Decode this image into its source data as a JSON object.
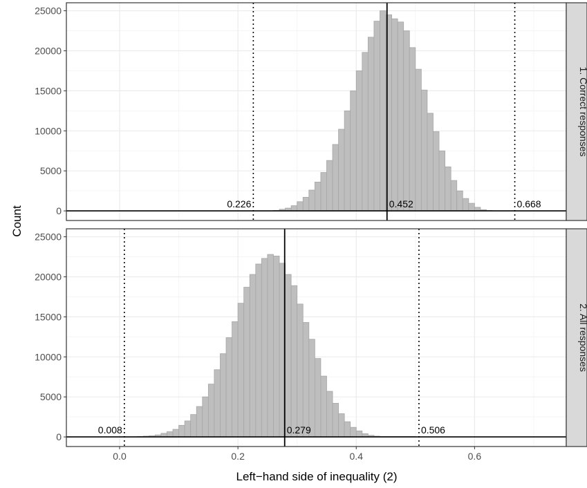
{
  "chart_data": {
    "type": "bar",
    "xlabel": "Left−hand side of inequality (2)",
    "ylabel": "Count",
    "xlim": [
      -0.09,
      0.755
    ],
    "x_ticks": [
      "0.0",
      "0.2",
      "0.4",
      "0.6"
    ],
    "x_tick_values": [
      0.0,
      0.2,
      0.4,
      0.6
    ],
    "grid": true,
    "bin_width": 0.01,
    "panels": [
      {
        "strip_label": "1. Correct responses",
        "ylim": [
          -1200,
          26000
        ],
        "y_ticks": [
          "0",
          "5000",
          "10000",
          "15000",
          "20000",
          "25000"
        ],
        "y_tick_values": [
          0,
          5000,
          10000,
          15000,
          20000,
          25000
        ],
        "bin_centers": [
          0.265,
          0.275,
          0.285,
          0.295,
          0.305,
          0.315,
          0.325,
          0.335,
          0.345,
          0.355,
          0.365,
          0.375,
          0.385,
          0.395,
          0.405,
          0.415,
          0.425,
          0.435,
          0.445,
          0.455,
          0.465,
          0.475,
          0.485,
          0.495,
          0.505,
          0.515,
          0.525,
          0.535,
          0.545,
          0.555,
          0.565,
          0.575,
          0.585,
          0.595,
          0.605,
          0.615,
          0.625
        ],
        "counts": [
          50,
          200,
          350,
          650,
          1150,
          1700,
          2600,
          3600,
          4800,
          6300,
          8300,
          10200,
          12500,
          15000,
          17500,
          19800,
          21700,
          23700,
          25000,
          24500,
          24000,
          23600,
          22500,
          20400,
          17700,
          15100,
          12200,
          9900,
          7500,
          5500,
          3800,
          2500,
          1550,
          950,
          450,
          150,
          50
        ],
        "vlines": [
          {
            "value": 0.226,
            "label": "0.226",
            "style": "dotted"
          },
          {
            "value": 0.452,
            "label": "0.452",
            "style": "solid"
          },
          {
            "value": 0.668,
            "label": "0.668",
            "style": "dotted"
          }
        ]
      },
      {
        "strip_label": "2. All responses",
        "ylim": [
          -1200,
          26000
        ],
        "y_ticks": [
          "0",
          "5000",
          "10000",
          "15000",
          "20000",
          "25000"
        ],
        "y_tick_values": [
          0,
          5000,
          10000,
          15000,
          20000,
          25000
        ],
        "bin_centers": [
          0.035,
          0.045,
          0.055,
          0.065,
          0.075,
          0.085,
          0.095,
          0.105,
          0.115,
          0.125,
          0.135,
          0.145,
          0.155,
          0.165,
          0.175,
          0.185,
          0.195,
          0.205,
          0.215,
          0.225,
          0.235,
          0.245,
          0.255,
          0.265,
          0.275,
          0.285,
          0.295,
          0.305,
          0.315,
          0.325,
          0.335,
          0.345,
          0.355,
          0.365,
          0.375,
          0.385,
          0.395,
          0.405,
          0.415,
          0.425,
          0.435,
          0.445,
          0.455,
          0.465,
          0.475,
          0.485,
          0.495
        ],
        "counts": [
          50,
          100,
          150,
          250,
          450,
          650,
          950,
          1450,
          2000,
          2800,
          3800,
          5000,
          6600,
          8400,
          10400,
          12400,
          14400,
          16700,
          18700,
          20300,
          21600,
          22300,
          22800,
          22600,
          21700,
          20300,
          18900,
          16600,
          14300,
          12200,
          9800,
          7600,
          5700,
          4200,
          2900,
          1900,
          1200,
          750,
          400,
          200,
          100,
          50,
          50,
          50,
          50,
          50,
          50
        ],
        "vlines": [
          {
            "value": 0.008,
            "label": "0.008",
            "style": "dotted"
          },
          {
            "value": 0.279,
            "label": "0.279",
            "style": "solid"
          },
          {
            "value": 0.506,
            "label": "0.506",
            "style": "dotted"
          }
        ]
      }
    ]
  },
  "colors": {
    "bar_fill": "#bebebe",
    "bar_stroke": "#a6a6a6",
    "strip_bg": "#d9d9d9",
    "grid_major": "#ebebeb",
    "grid_minor": "#f5f5f5"
  }
}
